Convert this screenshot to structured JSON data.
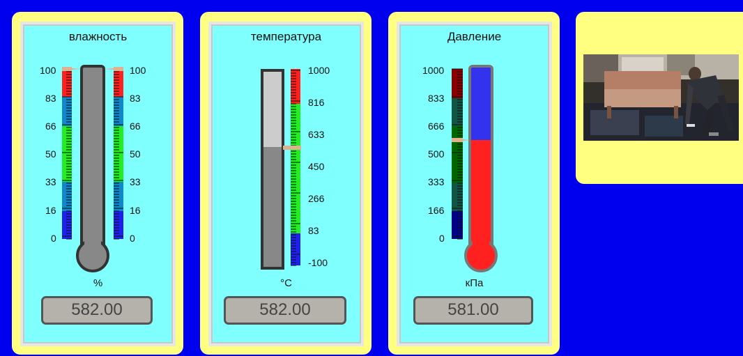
{
  "gauges": [
    {
      "title": "влажность",
      "unit": "%",
      "display_value": "582.00",
      "ticks_left": [
        "100",
        "83",
        "66",
        "50",
        "33",
        "16",
        "0"
      ],
      "ticks_right": [
        "100",
        "83",
        "66",
        "50",
        "33",
        "16",
        "0"
      ]
    },
    {
      "title": "температура",
      "unit": "°C",
      "display_value": "582.00",
      "ticks_right": [
        "1000",
        "816",
        "633",
        "450",
        "266",
        "83",
        "-100"
      ]
    },
    {
      "title": "Давление",
      "unit": "кПа",
      "display_value": "581.00",
      "ticks_left": [
        "1000",
        "833",
        "666",
        "500",
        "333",
        "166",
        "0"
      ]
    }
  ],
  "colors": {
    "background": "#0000ee",
    "card": "#ffff80",
    "panel": "#80ffff",
    "zone_red": "#ff2020",
    "zone_green": "#22ee22",
    "zone_blue": "#2020ee",
    "pressure_fill": "#ff2020",
    "pressure_empty": "#3333ee"
  }
}
